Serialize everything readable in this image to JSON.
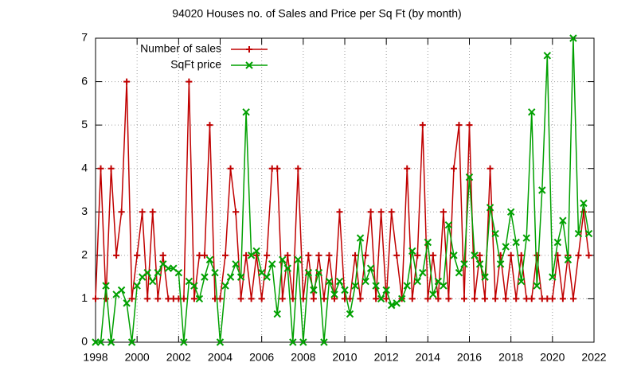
{
  "chart_data": {
    "type": "line",
    "title": "94020 Houses no. of Sales and Price per Sq Ft (by month)",
    "x": [
      1998.0,
      1998.25,
      1998.5,
      1998.75,
      1999.0,
      1999.25,
      1999.5,
      1999.75,
      2000.0,
      2000.25,
      2000.5,
      2000.75,
      2001.0,
      2001.25,
      2001.5,
      2001.75,
      2002.0,
      2002.25,
      2002.5,
      2002.75,
      2003.0,
      2003.25,
      2003.5,
      2003.75,
      2004.0,
      2004.25,
      2004.5,
      2004.75,
      2005.0,
      2005.25,
      2005.5,
      2005.75,
      2006.0,
      2006.25,
      2006.5,
      2006.75,
      2007.0,
      2007.25,
      2007.5,
      2007.75,
      2008.0,
      2008.25,
      2008.5,
      2008.75,
      2009.0,
      2009.25,
      2009.5,
      2009.75,
      2010.0,
      2010.25,
      2010.5,
      2010.75,
      2011.0,
      2011.25,
      2011.5,
      2011.75,
      2012.0,
      2012.25,
      2012.5,
      2012.75,
      2013.0,
      2013.25,
      2013.5,
      2013.75,
      2014.0,
      2014.25,
      2014.5,
      2014.75,
      2015.0,
      2015.25,
      2015.5,
      2015.75,
      2016.0,
      2016.25,
      2016.5,
      2016.75,
      2017.0,
      2017.25,
      2017.5,
      2017.75,
      2018.0,
      2018.25,
      2018.5,
      2018.75,
      2019.0,
      2019.25,
      2019.5,
      2019.75,
      2020.0,
      2020.25,
      2020.5,
      2020.75,
      2021.0,
      2021.25,
      2021.5,
      2021.75
    ],
    "series": [
      {
        "name": "Number of sales",
        "color": "#c00000",
        "marker": "plus",
        "values": [
          1,
          4,
          1,
          4,
          2,
          3,
          6,
          1,
          2,
          3,
          1,
          3,
          1,
          2,
          1,
          1,
          1,
          1,
          6,
          1,
          2,
          2,
          5,
          1,
          1,
          2,
          4,
          3,
          1,
          2,
          1,
          2,
          1,
          2,
          4,
          4,
          1,
          2,
          1,
          4,
          1,
          2,
          1,
          2,
          1,
          2,
          1,
          3,
          1,
          1,
          2,
          1,
          2,
          3,
          1,
          3,
          1,
          3,
          2,
          1,
          4,
          1,
          2,
          5,
          1,
          2,
          1,
          3,
          1,
          4,
          5,
          1,
          5,
          1,
          2,
          1,
          4,
          1,
          2,
          1,
          2,
          1,
          2,
          1,
          1,
          2,
          1,
          1,
          1,
          2,
          1,
          2,
          1,
          2,
          3,
          2
        ]
      },
      {
        "name": "SqFt price",
        "color": "#00a000",
        "marker": "cross",
        "values": [
          0,
          0,
          1.3,
          0,
          1.1,
          1.2,
          0.9,
          0,
          1.3,
          1.5,
          1.6,
          1.4,
          1.6,
          1.8,
          1.7,
          1.7,
          1.6,
          0,
          1.4,
          1.3,
          1.0,
          1.5,
          1.9,
          1.6,
          0,
          1.3,
          1.5,
          1.8,
          1.5,
          5.3,
          2.0,
          2.1,
          1.6,
          1.5,
          1.8,
          0.65,
          1.9,
          1.7,
          0,
          1.9,
          0,
          1.6,
          1.2,
          1.6,
          0,
          1.4,
          1.1,
          1.4,
          1.2,
          0.65,
          1.3,
          2.4,
          1.4,
          1.7,
          1.3,
          1.0,
          1.2,
          0.85,
          0.9,
          1.0,
          1.3,
          2.1,
          1.4,
          1.6,
          2.3,
          1.1,
          1.4,
          1.3,
          2.7,
          2.0,
          1.6,
          1.8,
          3.8,
          2.0,
          1.8,
          1.5,
          3.1,
          2.5,
          1.8,
          2.2,
          3.0,
          2.3,
          1.4,
          2.4,
          5.3,
          1.3,
          3.5,
          6.6,
          1.5,
          2.3,
          2.8,
          1.9,
          7.0,
          2.5,
          3.2,
          2.5
        ]
      }
    ],
    "xlim": [
      1998,
      2022
    ],
    "xticks": [
      1998,
      2000,
      2002,
      2004,
      2006,
      2008,
      2010,
      2012,
      2014,
      2016,
      2018,
      2020,
      2022
    ],
    "ylim": [
      0,
      7
    ],
    "yticks": [
      0,
      1,
      2,
      3,
      4,
      5,
      6,
      7
    ],
    "grid": true,
    "legend": "top-left"
  }
}
